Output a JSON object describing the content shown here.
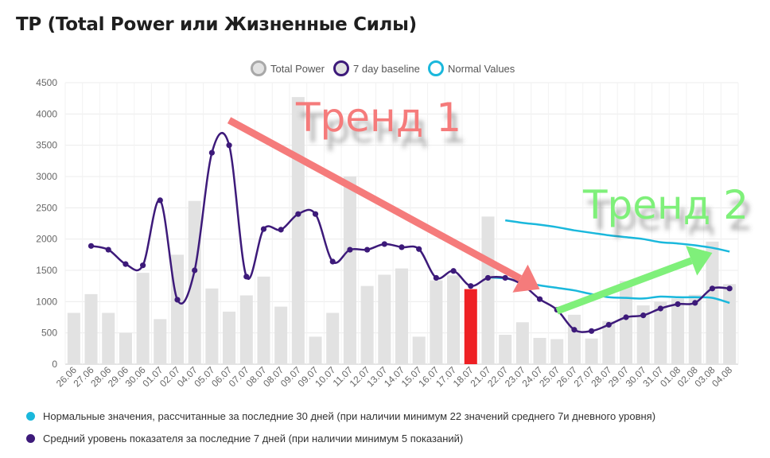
{
  "title": "TP (Total Power или Жизненные Силы)",
  "chart_data": {
    "type": "bar",
    "categories": [
      "26.06",
      "27.06",
      "28.06",
      "29.06",
      "30.06",
      "01.07",
      "02.07",
      "04.07",
      "05.07",
      "06.07",
      "07.07",
      "08.07",
      "08.07",
      "09.07",
      "09.07",
      "10.07",
      "11.07",
      "12.07",
      "13.07",
      "14.07",
      "15.07",
      "16.07",
      "17.07",
      "18.07",
      "21.07",
      "22.07",
      "23.07",
      "24.07",
      "25.07",
      "26.07",
      "27.07",
      "28.07",
      "29.07",
      "30.07",
      "31.07",
      "01.08",
      "02.08",
      "03.08",
      "04.08"
    ],
    "series": [
      {
        "name": "Total Power",
        "type": "bar",
        "color": "#e2e2e2",
        "highlight_color": "#ee2024",
        "highlight_index": 23,
        "values": [
          820,
          1120,
          820,
          500,
          1460,
          720,
          1750,
          2610,
          1210,
          840,
          1100,
          1400,
          920,
          4270,
          440,
          820,
          3000,
          1250,
          1430,
          1530,
          440,
          1340,
          1420,
          1200,
          2360,
          470,
          670,
          420,
          400,
          790,
          410,
          690,
          1330,
          940,
          1000,
          1050,
          1110,
          1960,
          1280
        ]
      },
      {
        "name": "7 day baseline",
        "type": "line",
        "color": "#3d1a7a",
        "values": [
          null,
          1890,
          1830,
          1600,
          1580,
          2620,
          1030,
          1500,
          3380,
          3500,
          1400,
          2160,
          2150,
          2400,
          2400,
          1640,
          1830,
          1830,
          1920,
          1870,
          1840,
          1380,
          1490,
          1250,
          1380,
          1380,
          1270,
          1040,
          870,
          550,
          530,
          630,
          750,
          780,
          890,
          960,
          980,
          1210,
          1210
        ]
      },
      {
        "name": "Normal Values",
        "type": "line",
        "color": "#1ab8dc",
        "values": [
          null,
          null,
          null,
          null,
          null,
          null,
          null,
          null,
          null,
          null,
          null,
          null,
          null,
          null,
          null,
          null,
          null,
          null,
          null,
          null,
          null,
          null,
          null,
          null,
          1390,
          1370,
          1320,
          1260,
          1220,
          1180,
          1120,
          1070,
          1060,
          1050,
          1080,
          1070,
          1070,
          1060,
          980
        ],
        "upper_values": [
          null,
          null,
          null,
          null,
          null,
          null,
          null,
          null,
          null,
          null,
          null,
          null,
          null,
          null,
          null,
          null,
          null,
          null,
          null,
          null,
          null,
          null,
          null,
          null,
          null,
          2300,
          2260,
          2230,
          2190,
          2140,
          2100,
          2060,
          2030,
          2000,
          1950,
          1930,
          1900,
          1860,
          1800
        ]
      }
    ],
    "ylim": [
      0,
      4500
    ],
    "yticks": [
      0,
      500,
      1000,
      1500,
      2000,
      2500,
      3000,
      3500,
      4000,
      4500
    ],
    "legend": {
      "position": "top-center",
      "items": [
        "Total Power",
        "7 day baseline",
        "Normal Values"
      ]
    },
    "annotations": [
      {
        "text": "Тренд 1",
        "color": "#f57b7b",
        "from": {
          "x_index": 9,
          "y": 3900
        },
        "to": {
          "x_index": 27,
          "y": 1200
        }
      },
      {
        "text": "Тренд 2",
        "color": "#7ff07a",
        "from": {
          "x_index": 28,
          "y": 850
        },
        "to": {
          "x_index": 37,
          "y": 1780
        }
      }
    ],
    "grid": true
  },
  "footnotes": [
    {
      "color": "#1ab8dc",
      "text": "Нормальные значения, рассчитанные за последние 30 дней (при наличии минимум 22 значений среднего 7и дневного уровня)"
    },
    {
      "color": "#3d1a7a",
      "text": "Средний уровень показателя за последние 7 дней (при наличии минимум 5 показаний)"
    }
  ]
}
